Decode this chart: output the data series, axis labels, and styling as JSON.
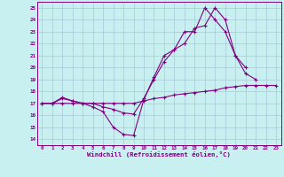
{
  "bg_color": "#c8f0f0",
  "grid_color": "#a8c8d8",
  "line_color": "#800080",
  "xlim": [
    -0.5,
    23.5
  ],
  "ylim": [
    13.5,
    25.5
  ],
  "xticks": [
    0,
    1,
    2,
    3,
    4,
    5,
    6,
    7,
    8,
    9,
    10,
    11,
    12,
    13,
    14,
    15,
    16,
    17,
    18,
    19,
    20,
    21,
    22,
    23
  ],
  "yticks": [
    14,
    15,
    16,
    17,
    18,
    19,
    20,
    21,
    22,
    23,
    24,
    25
  ],
  "xlabel": "Windchill (Refroidissement éolien,°C)",
  "series": [
    [
      17.0,
      17.0,
      17.0,
      17.0,
      17.0,
      17.0,
      17.0,
      17.0,
      17.0,
      17.0,
      17.2,
      17.4,
      17.5,
      17.7,
      17.8,
      17.9,
      18.0,
      18.1,
      18.3,
      18.4,
      18.5,
      18.5,
      18.5,
      18.5
    ],
    [
      17.0,
      17.0,
      17.4,
      17.2,
      17.0,
      17.0,
      16.7,
      16.5,
      16.2,
      16.1,
      17.4,
      19.0,
      20.5,
      21.5,
      22.0,
      23.3,
      23.5,
      25.0,
      24.0,
      21.0,
      19.5,
      19.0,
      null,
      null
    ],
    [
      17.0,
      17.0,
      17.5,
      17.2,
      17.0,
      16.7,
      16.3,
      15.0,
      14.4,
      14.3,
      17.3,
      19.2,
      21.0,
      21.5,
      23.0,
      23.0,
      25.0,
      24.0,
      23.0,
      21.0,
      20.0,
      null,
      null,
      null
    ]
  ],
  "marker": "+",
  "markersize": 3.0,
  "linewidth": 0.8
}
